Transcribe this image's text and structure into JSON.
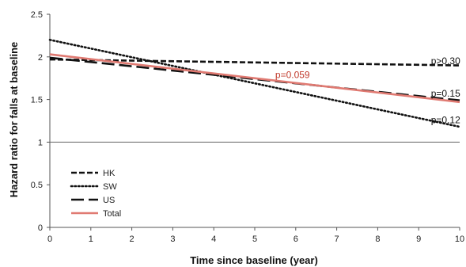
{
  "chart_data": {
    "type": "line",
    "title": "",
    "xlabel": "Time since baseline (year)",
    "ylabel": "Hazard ratio for falls at baseline",
    "xlim": [
      0,
      10
    ],
    "ylim": [
      0,
      2.5
    ],
    "x_ticks": [
      "0",
      "1",
      "2",
      "3",
      "4",
      "5",
      "6",
      "7",
      "8",
      "9",
      "10"
    ],
    "y_ticks": [
      "0",
      "0.5",
      "1",
      "1.5",
      "2",
      "2.5"
    ],
    "reference_line": 1,
    "grid": false,
    "legend": "bottom-left",
    "series": [
      {
        "name": "HK",
        "style": "dashed",
        "color": "#111111",
        "x": [
          0,
          10
        ],
        "y": [
          1.97,
          1.9
        ]
      },
      {
        "name": "SW",
        "style": "dotted",
        "color": "#111111",
        "x": [
          0,
          10
        ],
        "y": [
          2.2,
          1.18
        ]
      },
      {
        "name": "US",
        "style": "longdash",
        "color": "#111111",
        "x": [
          0,
          10
        ],
        "y": [
          1.99,
          1.49
        ]
      },
      {
        "name": "Total",
        "style": "solid",
        "color": "#e07a72",
        "x": [
          0,
          10
        ],
        "y": [
          2.03,
          1.47
        ]
      }
    ],
    "annotations": [
      {
        "text": "p>0.30",
        "x": 9.3,
        "y": 1.95,
        "color": "#111111"
      },
      {
        "text": "p=0.15",
        "x": 9.3,
        "y": 1.57,
        "color": "#111111"
      },
      {
        "text": "p=0.12",
        "x": 9.3,
        "y": 1.26,
        "color": "#111111"
      },
      {
        "text": "p=0.059",
        "x": 5.5,
        "y": 1.79,
        "color": "#c0392b"
      }
    ]
  }
}
